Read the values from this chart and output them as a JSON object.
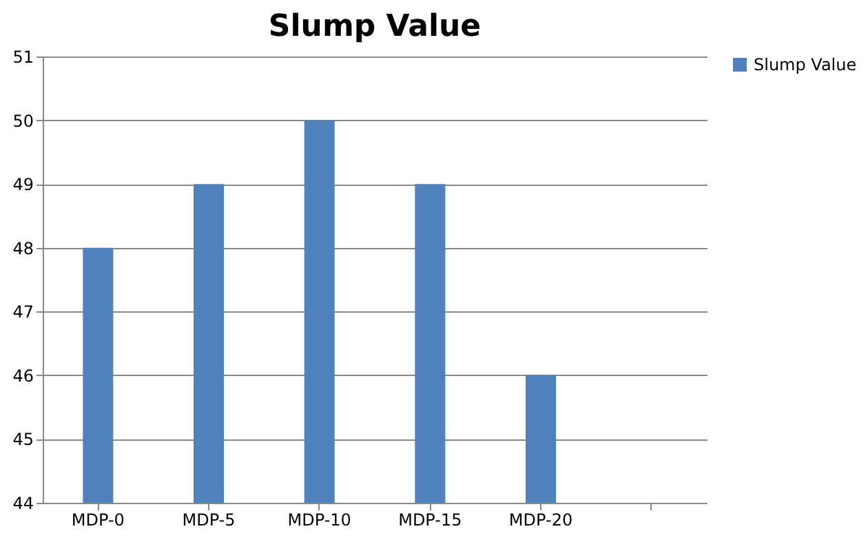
{
  "chart_data": {
    "type": "bar",
    "title": "Slump Value",
    "categories": [
      "MDP-0",
      "MDP-5",
      "MDP-10",
      "MDP-15",
      "MDP-20",
      null
    ],
    "series": [
      {
        "name": "Slump Value",
        "color": "#4f81bd",
        "values": [
          48,
          49,
          50,
          49,
          46,
          null
        ]
      }
    ],
    "ylim": [
      44,
      51
    ],
    "yticks": [
      44,
      45,
      46,
      47,
      48,
      49,
      50,
      51
    ],
    "grid": "y",
    "legend": "right"
  }
}
